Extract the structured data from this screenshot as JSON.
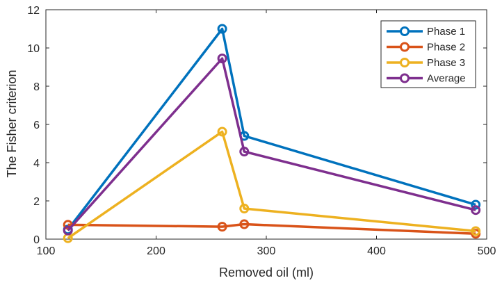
{
  "chart_data": {
    "type": "line",
    "title": "",
    "xlabel": "Removed oil (ml)",
    "ylabel": "The Fisher criterion",
    "xlim": [
      100,
      500
    ],
    "ylim": [
      0,
      12
    ],
    "xticks": [
      100,
      200,
      300,
      400,
      500
    ],
    "yticks": [
      0,
      2,
      4,
      6,
      8,
      10,
      12
    ],
    "x": [
      120,
      260,
      280,
      490
    ],
    "grid": false,
    "legend_position": "top-right",
    "series": [
      {
        "name": "Phase 1",
        "color": "#0072BD",
        "values": [
          0.5,
          11.0,
          5.4,
          1.8
        ]
      },
      {
        "name": "Phase 2",
        "color": "#D95319",
        "values": [
          0.75,
          0.65,
          0.78,
          0.28
        ]
      },
      {
        "name": "Phase 3",
        "color": "#EDB120",
        "values": [
          0.05,
          5.62,
          1.6,
          0.42
        ]
      },
      {
        "name": "Average",
        "color": "#7E2F8E",
        "values": [
          0.45,
          9.45,
          4.58,
          1.52
        ]
      }
    ]
  }
}
